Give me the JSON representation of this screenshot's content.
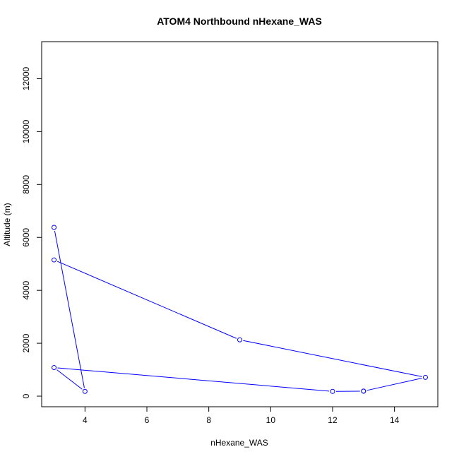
{
  "chart_data": {
    "type": "line",
    "title": "ATOM4 Northbound nHexane_WAS",
    "xlabel": "nHexane_WAS",
    "ylabel": "Altitude (m)",
    "xlim": [
      2.6,
      15.4
    ],
    "ylim": [
      -400,
      13400
    ],
    "x_ticks": [
      4,
      6,
      8,
      10,
      12,
      14
    ],
    "y_ticks": [
      0,
      2000,
      4000,
      6000,
      8000,
      10000,
      12000
    ],
    "series": [
      {
        "color": "#0000ff",
        "marker": "open-circle",
        "x": [
          3,
          4,
          3,
          12,
          13,
          13,
          15,
          9,
          3
        ],
        "y": [
          6380,
          180,
          1080,
          180,
          190,
          190,
          710,
          2130,
          5150
        ]
      }
    ]
  }
}
